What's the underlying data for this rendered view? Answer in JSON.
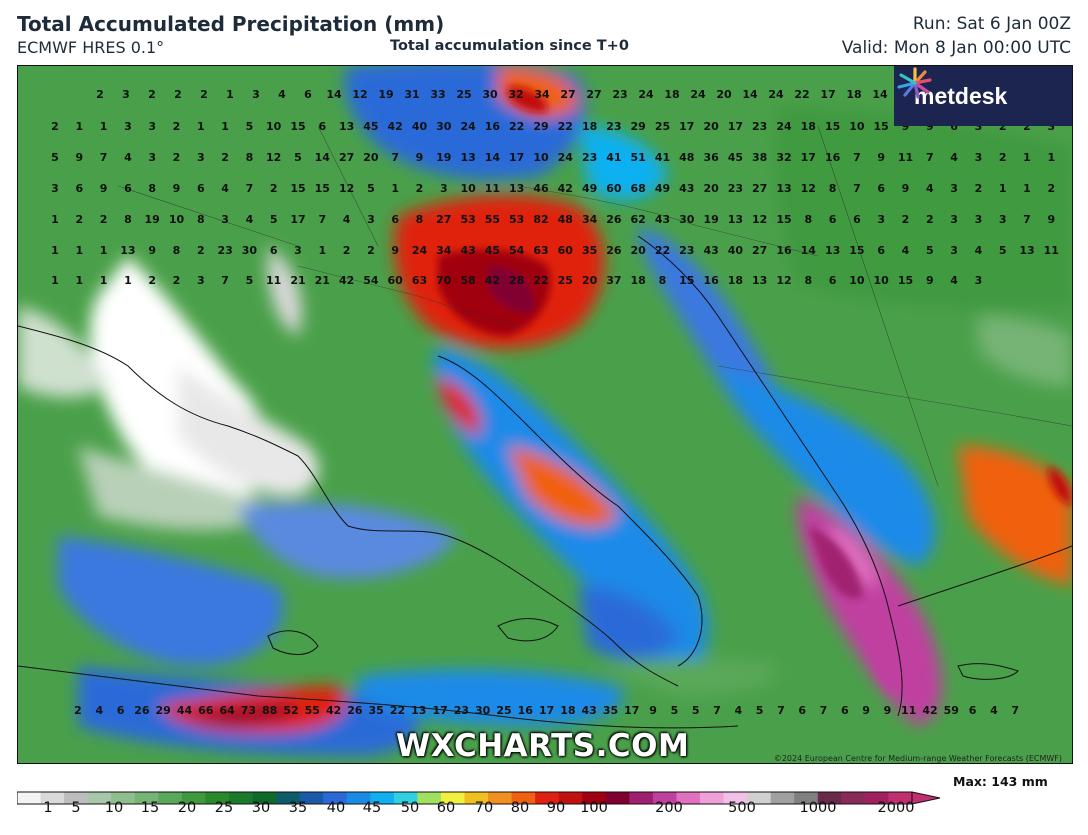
{
  "header": {
    "title": "Total Accumulated Precipitation (mm)",
    "model": "ECMWF HRES 0.1°",
    "subtitle": "Total accumulation since T+0",
    "run": "Run: Sat 6 Jan 00Z",
    "valid": "Valid: Mon 8 Jan 00:00 UTC"
  },
  "logo": {
    "text": "metdesk",
    "icon": "starburst-icon"
  },
  "watermark": "WXCHARTS.COM",
  "copyright": "©2024 European Centre for Medium-range Weather Forecasts (ECMWF)",
  "legend": {
    "max_label": "Max: 143 mm",
    "ticks": [
      "1",
      "5",
      "10",
      "15",
      "20",
      "25",
      "30",
      "35",
      "40",
      "45",
      "50",
      "60",
      "70",
      "80",
      "90",
      "100",
      "200",
      "500",
      "1000",
      "2000"
    ],
    "colors": [
      "#f4f4f4",
      "#d9d9d9",
      "#bdbdbd",
      "#a8c7a8",
      "#8fbf8f",
      "#76b476",
      "#5aa85a",
      "#3f9a3f",
      "#2a8a2a",
      "#1a7a2a",
      "#0f6a2a",
      "#0c5c6a",
      "#1a5aa8",
      "#2a6ad8",
      "#1a8ae8",
      "#10b0f0",
      "#30d0e0",
      "#a0e060",
      "#f0f040",
      "#f0c020",
      "#f09020",
      "#f06010",
      "#e02010",
      "#c01010",
      "#a00010",
      "#800030",
      "#a02070",
      "#c040a0",
      "#e070c0",
      "#f0a0d8",
      "#f0c0e8",
      "#d0d0d0",
      "#a0a0a0",
      "#808080",
      "#6a2a4a",
      "#8a2a5a",
      "#a02060",
      "#c03070"
    ]
  },
  "map": {
    "values": [
      [
        2,
        3,
        2,
        2,
        2,
        1,
        3,
        4,
        6,
        14,
        12,
        19,
        31,
        33,
        25,
        30,
        32,
        34,
        27,
        27,
        23,
        24,
        18,
        24,
        20,
        14,
        24,
        22,
        17,
        18,
        14,
        13,
        9,
        8,
        5
      ],
      [
        2,
        1,
        1,
        3,
        3,
        2,
        1,
        1,
        5,
        10,
        15,
        6,
        13,
        45,
        42,
        40,
        30,
        24,
        16,
        22,
        29,
        22,
        18,
        23,
        29,
        25,
        17,
        20,
        17,
        23,
        24,
        18,
        15,
        10,
        15,
        9,
        9,
        6,
        3,
        2,
        2,
        3,
        2,
        1,
        1,
        4
      ],
      [
        5,
        9,
        7,
        4,
        3,
        2,
        3,
        2,
        8,
        12,
        5,
        14,
        27,
        20,
        7,
        9,
        19,
        13,
        14,
        17,
        10,
        24,
        23,
        41,
        51,
        41,
        48,
        36,
        45,
        38,
        32,
        17,
        16,
        7,
        9,
        11,
        7,
        4,
        3,
        2,
        1,
        1,
        2,
        4
      ],
      [
        3,
        6,
        9,
        6,
        8,
        9,
        6,
        4,
        7,
        2,
        15,
        15,
        12,
        5,
        1,
        2,
        3,
        10,
        11,
        13,
        46,
        42,
        49,
        60,
        68,
        49,
        43,
        20,
        23,
        27,
        13,
        12,
        8,
        7,
        6,
        9,
        4,
        3,
        2,
        1,
        1,
        2,
        1,
        3,
        5
      ],
      [
        1,
        2,
        2,
        8,
        19,
        10,
        8,
        3,
        4,
        5,
        17,
        7,
        4,
        3,
        6,
        8,
        27,
        53,
        55,
        53,
        82,
        48,
        34,
        26,
        62,
        43,
        30,
        19,
        13,
        12,
        15,
        8,
        6,
        6,
        3,
        2,
        2,
        3,
        3,
        3,
        7,
        9,
        11
      ],
      [
        1,
        1,
        1,
        13,
        9,
        8,
        2,
        23,
        30,
        6,
        3,
        1,
        2,
        2,
        9,
        24,
        34,
        43,
        45,
        54,
        63,
        60,
        35,
        26,
        20,
        22,
        23,
        43,
        40,
        27,
        16,
        14,
        13,
        15,
        6,
        4,
        5,
        3,
        4,
        5,
        13,
        11,
        17,
        16,
        12
      ],
      [
        1,
        1,
        1,
        1,
        2,
        2,
        3,
        7,
        5,
        11,
        21,
        21,
        42,
        54,
        60,
        63,
        70,
        58,
        42,
        28,
        22,
        25,
        20,
        37,
        18,
        8,
        15,
        16,
        18,
        13,
        12,
        8,
        6,
        10,
        10,
        15,
        9,
        4,
        3
      ]
    ],
    "bottom_values": [
      [
        2,
        4,
        6,
        26,
        29,
        44,
        66,
        64,
        73,
        88,
        52,
        55,
        42,
        26,
        35,
        22,
        13,
        17,
        23,
        30,
        25,
        16,
        17,
        18,
        43,
        35,
        17,
        9,
        5,
        5,
        7,
        4,
        5,
        7,
        6,
        7,
        6,
        9,
        9,
        11,
        42,
        59,
        6,
        4,
        7
      ]
    ]
  }
}
